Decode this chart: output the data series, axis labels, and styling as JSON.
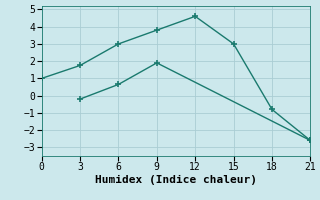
{
  "line1_x": [
    0,
    3,
    6,
    9,
    12,
    15,
    18,
    21
  ],
  "line1_y": [
    1.0,
    1.75,
    3.0,
    3.8,
    4.6,
    3.0,
    -0.8,
    -2.6
  ],
  "line2_x": [
    3,
    6,
    9,
    21
  ],
  "line2_y": [
    -0.2,
    0.65,
    1.9,
    -2.6
  ],
  "line_color": "#1a7a6e",
  "bg_color": "#cce8ec",
  "grid_color": "#aacdd4",
  "xlabel": "Humidex (Indice chaleur)",
  "xlim": [
    0,
    21
  ],
  "ylim": [
    -3.5,
    5.2
  ],
  "xticks": [
    0,
    3,
    6,
    9,
    12,
    15,
    18,
    21
  ],
  "yticks": [
    -3,
    -2,
    -1,
    0,
    1,
    2,
    3,
    4,
    5
  ],
  "markersize": 5,
  "linewidth": 1.0,
  "xlabel_fontsize": 8,
  "tick_fontsize": 7,
  "font_family": "monospace"
}
